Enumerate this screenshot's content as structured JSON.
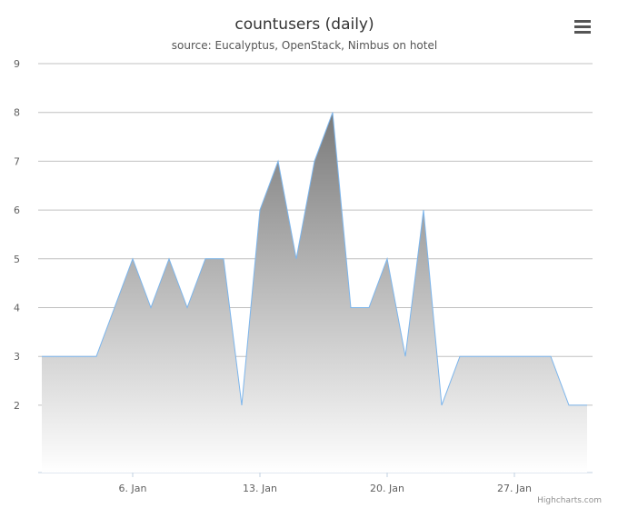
{
  "chart_data": {
    "type": "area",
    "title": "countusers (daily)",
    "subtitle": "source: Eucalyptus, OpenStack, Nimbus on hotel",
    "credits": "Highcharts.com",
    "categories": [
      null,
      null,
      null,
      null,
      null,
      "6. Jan",
      null,
      null,
      null,
      null,
      null,
      null,
      "13. Jan",
      null,
      null,
      null,
      null,
      null,
      null,
      "20. Jan",
      null,
      null,
      null,
      null,
      null,
      null,
      "27. Jan",
      null,
      null,
      null,
      null
    ],
    "series": [
      {
        "color": "#7cb5ec",
        "values": [
          3,
          3,
          3,
          3,
          4,
          5,
          4,
          5,
          4,
          5,
          5,
          2,
          6,
          7,
          5,
          7,
          8,
          4,
          4,
          5,
          3,
          6,
          2,
          3,
          3,
          3,
          3,
          3,
          3,
          2,
          2
        ]
      }
    ],
    "ylim": [
      0.62,
      9
    ],
    "yticks": [
      2,
      3,
      4,
      5,
      6,
      7,
      8,
      9
    ],
    "grid": true
  }
}
